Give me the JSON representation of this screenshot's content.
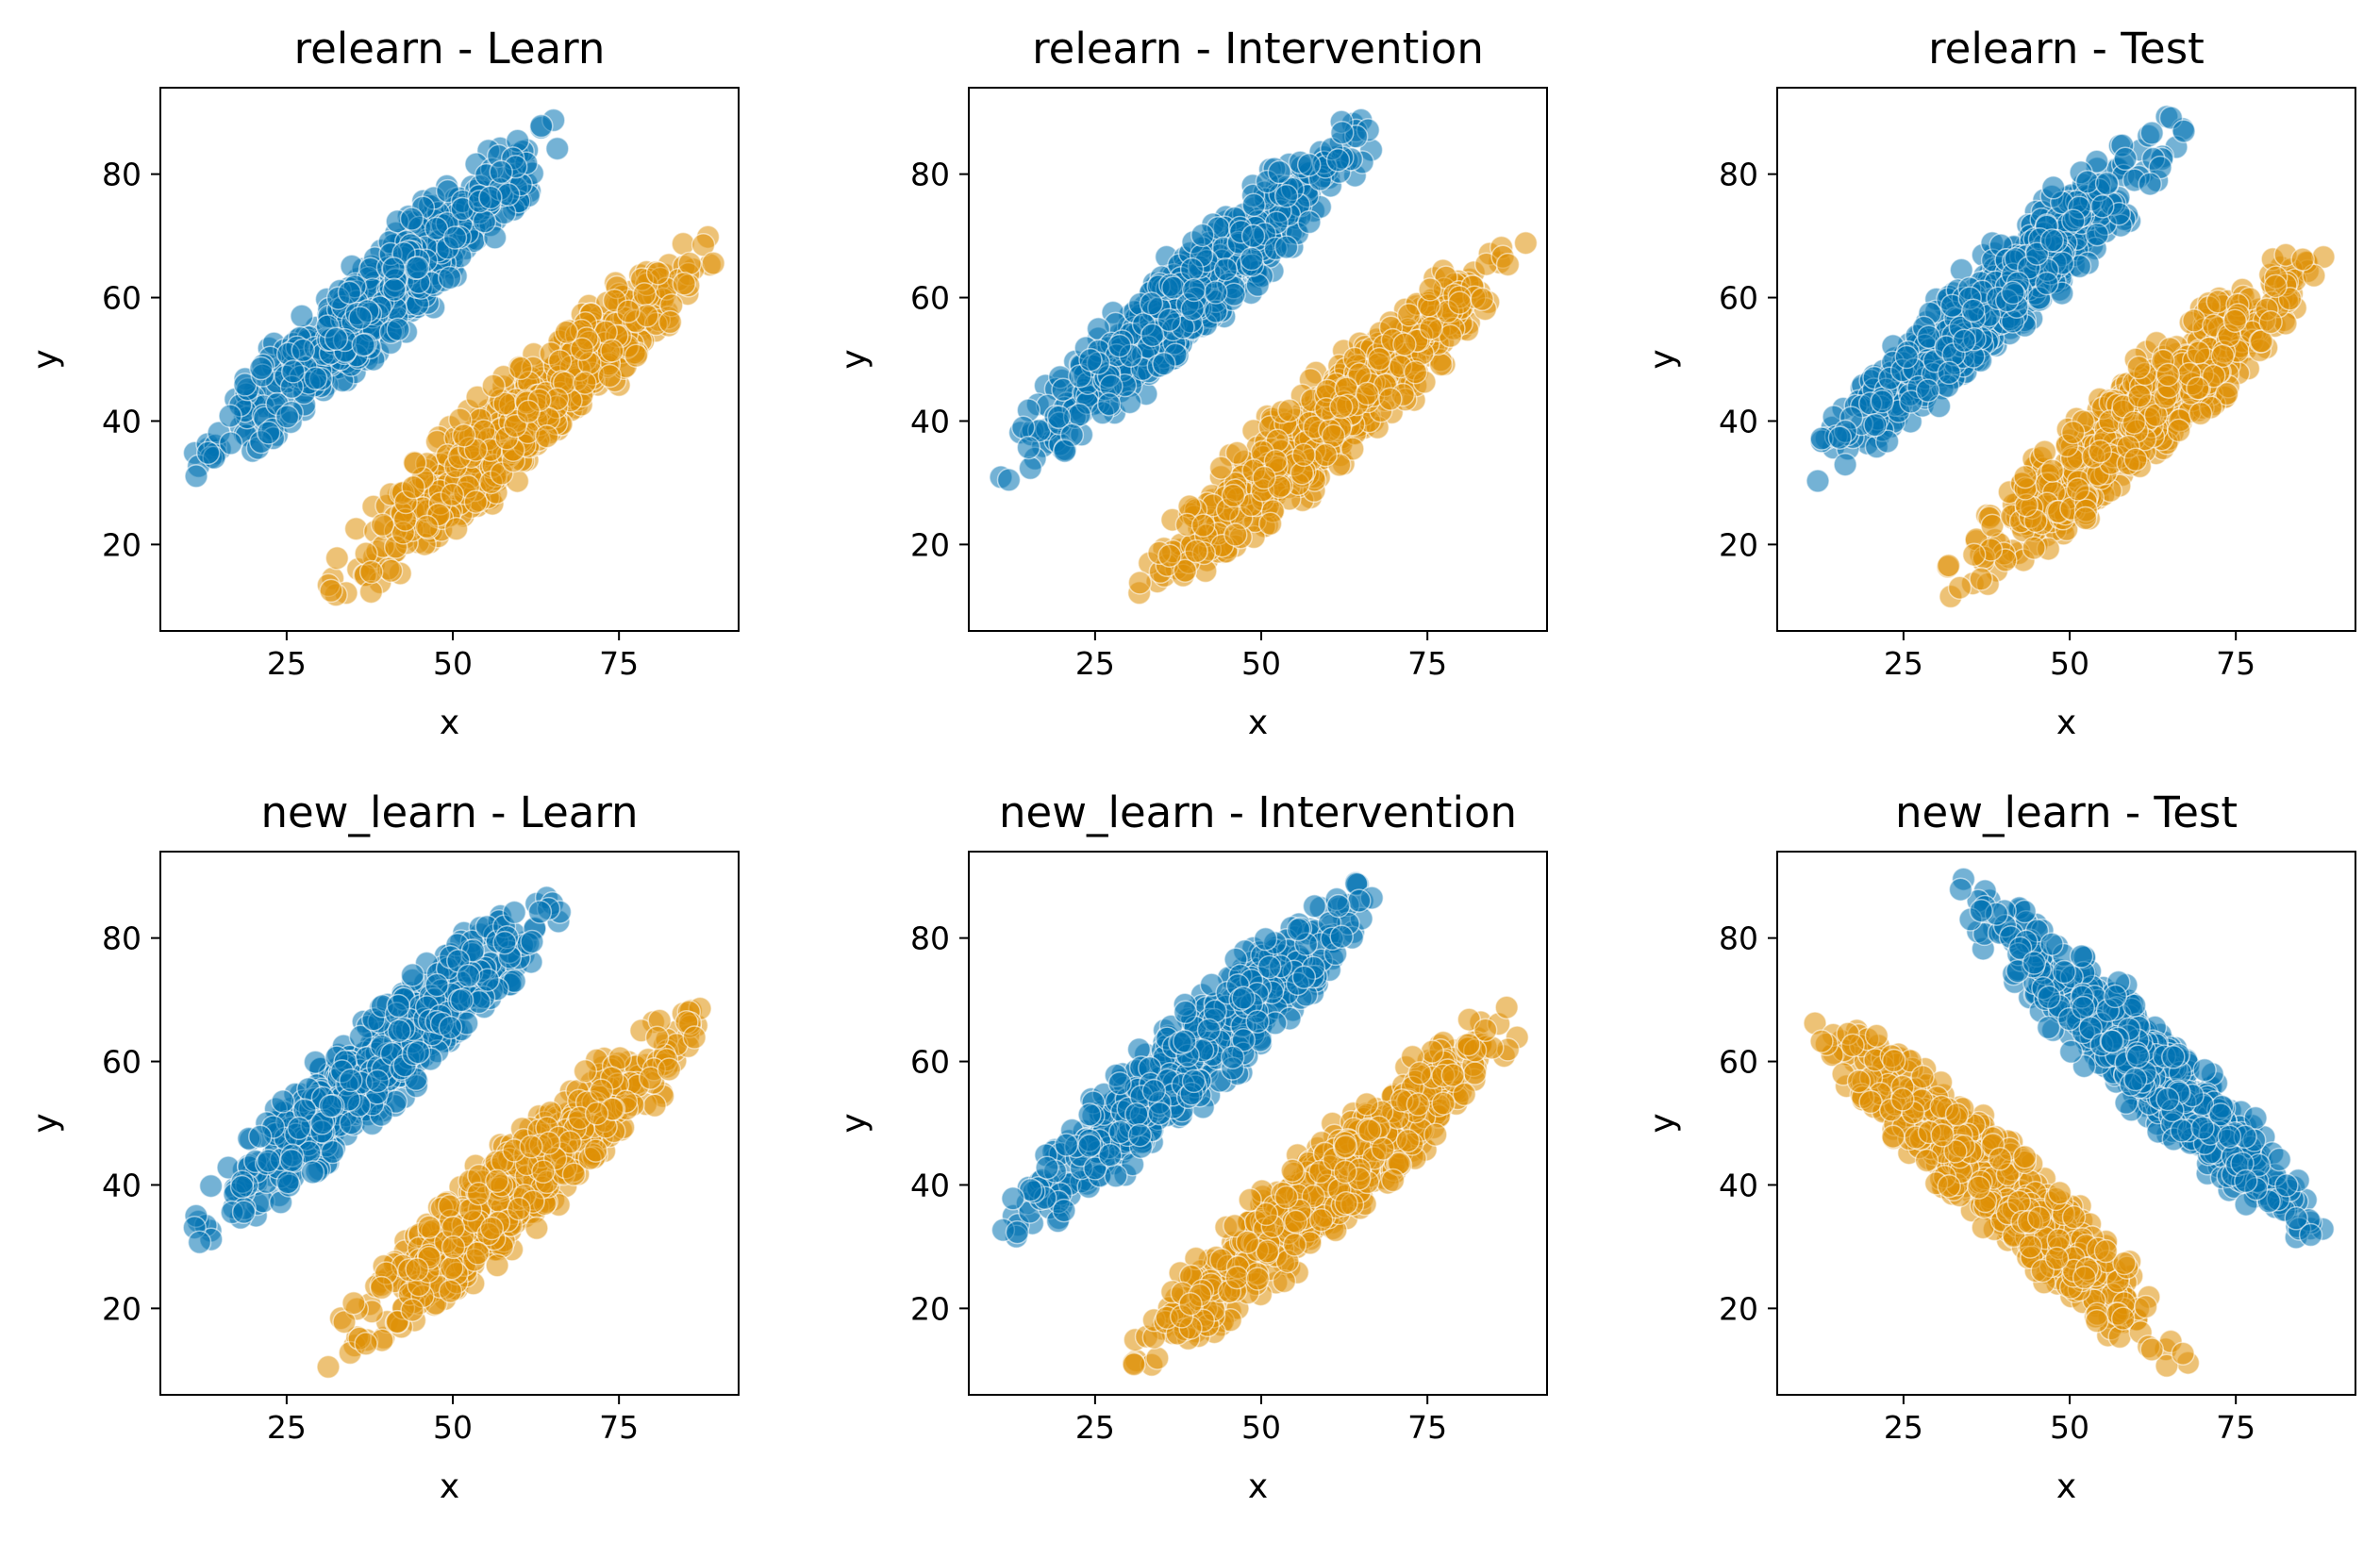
{
  "colors": {
    "series_a": "#0173b2",
    "series_b": "#de8f05"
  },
  "chart_data": [
    {
      "type": "scatter",
      "title": "relearn - Learn",
      "xlabel": "x",
      "ylabel": "y",
      "xlim": [
        6,
        93
      ],
      "ylim": [
        6,
        94
      ],
      "xticks": [
        25,
        50,
        75
      ],
      "yticks": [
        20,
        40,
        60,
        80
      ],
      "grid": false,
      "series": [
        {
          "x_range": [
            10,
            68
          ],
          "y_range": [
            30,
            90
          ],
          "orientation": "increasing",
          "color": "#0173b2"
        },
        {
          "x_range": [
            30,
            90
          ],
          "y_range": [
            10,
            70
          ],
          "orientation": "increasing",
          "color": "#de8f05"
        }
      ]
    },
    {
      "type": "scatter",
      "title": "relearn - Intervention",
      "xlabel": "x",
      "ylabel": "y",
      "xlim": [
        6,
        93
      ],
      "ylim": [
        6,
        94
      ],
      "xticks": [
        25,
        50,
        75
      ],
      "yticks": [
        20,
        40,
        60,
        80
      ],
      "grid": false,
      "series": [
        {
          "x_range": [
            10,
            68
          ],
          "y_range": [
            30,
            90
          ],
          "orientation": "increasing",
          "color": "#0173b2"
        },
        {
          "x_range": [
            30,
            90
          ],
          "y_range": [
            10,
            70
          ],
          "orientation": "increasing",
          "color": "#de8f05"
        }
      ]
    },
    {
      "type": "scatter",
      "title": "relearn - Test",
      "xlabel": "x",
      "ylabel": "y",
      "xlim": [
        6,
        93
      ],
      "ylim": [
        6,
        94
      ],
      "xticks": [
        25,
        50,
        75
      ],
      "yticks": [
        20,
        40,
        60,
        80
      ],
      "grid": false,
      "series": [
        {
          "x_range": [
            10,
            68
          ],
          "y_range": [
            30,
            90
          ],
          "orientation": "increasing",
          "color": "#0173b2"
        },
        {
          "x_range": [
            30,
            90
          ],
          "y_range": [
            10,
            70
          ],
          "orientation": "increasing",
          "color": "#de8f05"
        }
      ]
    },
    {
      "type": "scatter",
      "title": "new_learn - Learn",
      "xlabel": "x",
      "ylabel": "y",
      "xlim": [
        6,
        93
      ],
      "ylim": [
        6,
        94
      ],
      "xticks": [
        25,
        50,
        75
      ],
      "yticks": [
        20,
        40,
        60,
        80
      ],
      "grid": false,
      "series": [
        {
          "x_range": [
            10,
            68
          ],
          "y_range": [
            30,
            90
          ],
          "orientation": "increasing",
          "color": "#0173b2"
        },
        {
          "x_range": [
            30,
            90
          ],
          "y_range": [
            10,
            70
          ],
          "orientation": "increasing",
          "color": "#de8f05"
        }
      ]
    },
    {
      "type": "scatter",
      "title": "new_learn - Intervention",
      "xlabel": "x",
      "ylabel": "y",
      "xlim": [
        6,
        93
      ],
      "ylim": [
        6,
        94
      ],
      "xticks": [
        25,
        50,
        75
      ],
      "yticks": [
        20,
        40,
        60,
        80
      ],
      "grid": false,
      "series": [
        {
          "x_range": [
            10,
            68
          ],
          "y_range": [
            30,
            90
          ],
          "orientation": "increasing",
          "color": "#0173b2"
        },
        {
          "x_range": [
            30,
            90
          ],
          "y_range": [
            10,
            70
          ],
          "orientation": "increasing",
          "color": "#de8f05"
        }
      ]
    },
    {
      "type": "scatter",
      "title": "new_learn - Test",
      "xlabel": "x",
      "ylabel": "y",
      "xlim": [
        6,
        93
      ],
      "ylim": [
        6,
        94
      ],
      "xticks": [
        25,
        50,
        75
      ],
      "yticks": [
        20,
        40,
        60,
        80
      ],
      "grid": false,
      "series": [
        {
          "x_range": [
            32,
            90
          ],
          "y_range": [
            30,
            90
          ],
          "orientation": "decreasing",
          "color": "#0173b2"
        },
        {
          "x_range": [
            10,
            68
          ],
          "y_range": [
            10,
            70
          ],
          "orientation": "decreasing",
          "color": "#de8f05"
        }
      ]
    }
  ]
}
